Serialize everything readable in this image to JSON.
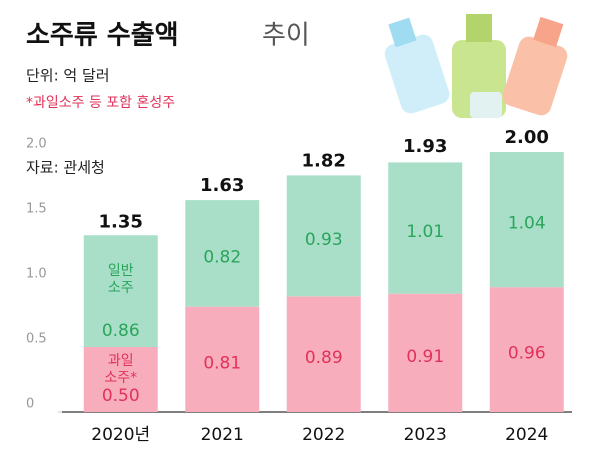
{
  "chart_data": {
    "type": "stacked-bar",
    "title": "소주류 수출액",
    "title_suffix": "추이",
    "subtitle": "단위: 억 달러",
    "note": "*과일소주 등 포함 혼성주",
    "source": "자료: 관세청",
    "categories": [
      "2020년",
      "2021",
      "2022",
      "2023",
      "2024"
    ],
    "series": [
      {
        "name": "과일 소주*",
        "color": "#f8adbd",
        "label_color": "#e0335a",
        "values": [
          0.5,
          0.81,
          0.89,
          0.91,
          0.96
        ],
        "value_labels": [
          "0.50",
          "0.81",
          "0.89",
          "0.91",
          "0.96"
        ]
      },
      {
        "name": "일반 소주",
        "color": "#a9dfc9",
        "label_color": "#2aa55a",
        "values": [
          0.86,
          0.82,
          0.93,
          1.01,
          1.04
        ]
      }
    ],
    "totals": [
      1.35,
      1.63,
      1.82,
      1.93,
      2.0
    ],
    "total_labels": [
      "1.35",
      "1.63",
      "1.82",
      "1.93",
      "2.00"
    ],
    "ylim": [
      0,
      2
    ],
    "yticks": [
      0,
      {
        "value": 0.5,
        "label": "0.5"
      },
      {
        "value": 1,
        "label": "1.0"
      },
      {
        "value": 1.5,
        "label": "1.5"
      },
      {
        "value": 2,
        "label": "2.0"
      }
    ]
  }
}
